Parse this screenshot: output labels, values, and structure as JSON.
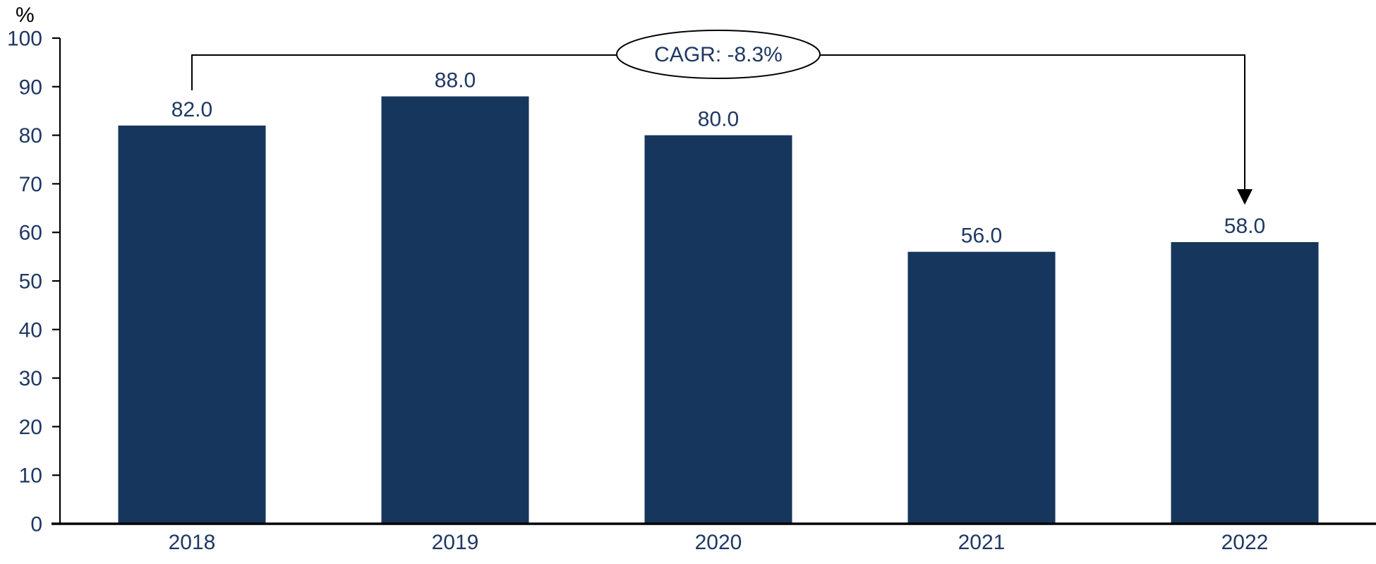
{
  "chart_data": {
    "type": "bar",
    "title": "",
    "categories": [
      "2018",
      "2019",
      "2020",
      "2021",
      "2022"
    ],
    "values": [
      82.0,
      88.0,
      80.0,
      56.0,
      58.0
    ],
    "value_labels": [
      "82.0",
      "88.0",
      "80.0",
      "56.0",
      "58.0"
    ],
    "xlabel": "",
    "ylabel": "%",
    "ylim": [
      0,
      100
    ],
    "yticks": [
      0,
      10,
      20,
      30,
      40,
      50,
      60,
      70,
      80,
      90,
      100
    ],
    "grid": false,
    "legend": null,
    "annotation": {
      "label": "CAGR: -8.3%",
      "from_category": "2018",
      "to_category": "2022"
    },
    "colors": {
      "bar_fill": "#17365D",
      "text_navy": "#1F3864",
      "axis_black": "#000000",
      "annotation_fill": "#FFFFFF"
    }
  }
}
